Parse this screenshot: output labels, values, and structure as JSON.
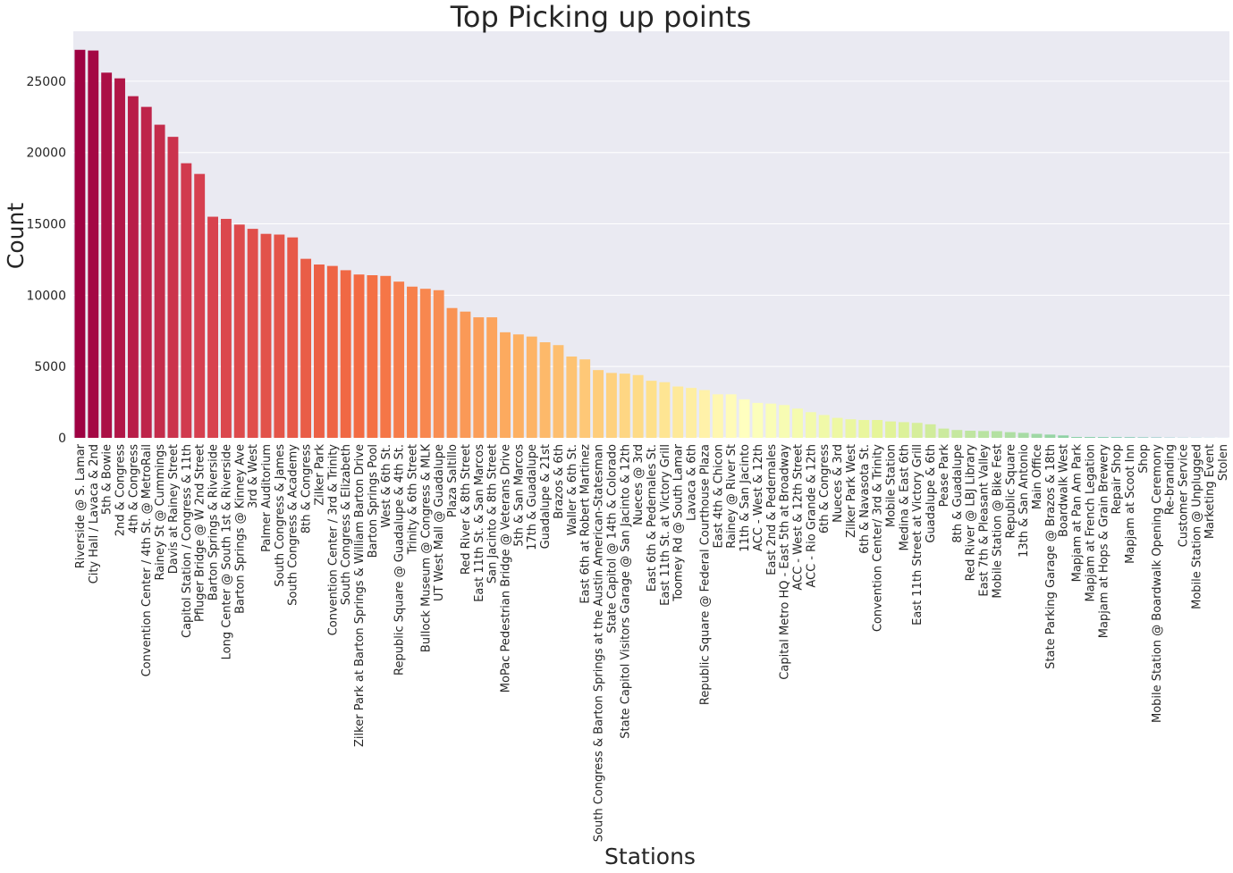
{
  "chart_data": {
    "type": "bar",
    "title": "Top Picking up points",
    "xlabel": "Stations",
    "ylabel": "Count",
    "ylim": [
      0,
      28500
    ],
    "yticks": [
      0,
      5000,
      10000,
      15000,
      20000,
      25000
    ],
    "grid": true,
    "legend": "none",
    "palette": "Spectral (red-orange-yellow-green)",
    "categories": [
      "Riverside @ S. Lamar",
      "City Hall / Lavaca & 2nd",
      "5th & Bowie",
      "2nd & Congress",
      "4th & Congress",
      "Convention Center / 4th St. @ MetroRail",
      "Rainey St @ Cummings",
      "Davis at Rainey Street",
      "Capitol Station / Congress & 11th",
      "Pfluger Bridge @ W 2nd Street",
      "Barton Springs & Riverside",
      "Long Center @ South 1st & Riverside",
      "Barton Springs @ Kinney Ave",
      "3rd & West",
      "Palmer Auditorium",
      "South Congress & James",
      "South Congress & Academy",
      "8th & Congress",
      "Zilker Park",
      "Convention Center / 3rd & Trinity",
      "South Congress & Elizabeth",
      "Zilker Park at Barton Springs & William Barton Drive",
      "Barton Springs Pool",
      "West & 6th St.",
      "Republic Square @ Guadalupe & 4th St.",
      "Trinity & 6th Street",
      "Bullock Museum @ Congress & MLK",
      "UT West Mall @ Guadalupe",
      "Plaza Saltillo",
      "Red River & 8th Street",
      "East 11th St. & San Marcos",
      "San Jacinto & 8th Street",
      "MoPac Pedestrian Bridge @ Veterans Drive",
      "5th & San Marcos",
      "17th & Guadalupe",
      "Guadalupe & 21st",
      "Brazos & 6th",
      "Waller & 6th St.",
      "East 6th at Robert Martinez",
      "South Congress & Barton Springs at the Austin American-Statesman",
      "State Capitol @ 14th & Colorado",
      "State Capitol Visitors Garage @ San Jacinto & 12th",
      "Nueces @ 3rd",
      "East 6th & Pedernales St.",
      "East 11th St. at Victory Grill",
      "Toomey Rd @ South Lamar",
      "Lavaca & 6th",
      "Republic Square @ Federal Courthouse Plaza",
      "East 4th & Chicon",
      "Rainey @ River St",
      "11th & San Jacinto",
      "ACC - West & 12th",
      "East 2nd & Pedernales",
      "Capital Metro HQ - East 5th at Broadway",
      "ACC - West & 12th Street",
      "ACC - Rio Grande & 12th",
      "6th & Congress",
      "Nueces & 3rd",
      "Zilker Park West",
      "6th & Navasota St.",
      "Convention Center/ 3rd & Trinity",
      "Mobile Station",
      "Medina & East 6th",
      "East 11th Street at Victory Grill",
      "Guadalupe & 6th",
      "Pease Park",
      "8th & Guadalupe",
      "Red River @ LBJ Library",
      "East 7th & Pleasant Valley",
      "Mobile Station @ Bike Fest",
      "Republic Square",
      "13th & San Antonio",
      "Main Office",
      "State Parking Garage @ Brazos & 18th",
      "Boardwalk West",
      "Mapjam at Pan Am Park",
      "Mapjam at French Legation",
      "Mapjam at Hops & Grain Brewery",
      "Repair Shop",
      "Mapjam at Scoot Inn",
      "Shop",
      "Mobile Station @ Boardwalk Opening Ceremony",
      "Re-branding",
      "Customer Service",
      "Mobile Station @ Unplugged",
      "Marketing Event",
      "Stolen"
    ],
    "values": [
      27200,
      27150,
      25600,
      25200,
      23950,
      23200,
      21950,
      21100,
      19250,
      18500,
      15500,
      15350,
      14950,
      14650,
      14300,
      14250,
      14050,
      12550,
      12150,
      12050,
      11750,
      11450,
      11400,
      11350,
      10950,
      10600,
      10450,
      10350,
      9100,
      8850,
      8450,
      8450,
      7400,
      7250,
      7100,
      6700,
      6500,
      5700,
      5500,
      4750,
      4550,
      4500,
      4400,
      4000,
      3900,
      3600,
      3500,
      3350,
      3050,
      3050,
      2700,
      2450,
      2400,
      2300,
      2050,
      1800,
      1600,
      1400,
      1300,
      1250,
      1250,
      1150,
      1100,
      1050,
      950,
      650,
      550,
      500,
      480,
      470,
      400,
      350,
      280,
      230,
      170,
      60,
      55,
      50,
      45,
      40,
      30,
      25,
      15,
      10,
      8,
      5,
      3
    ]
  }
}
